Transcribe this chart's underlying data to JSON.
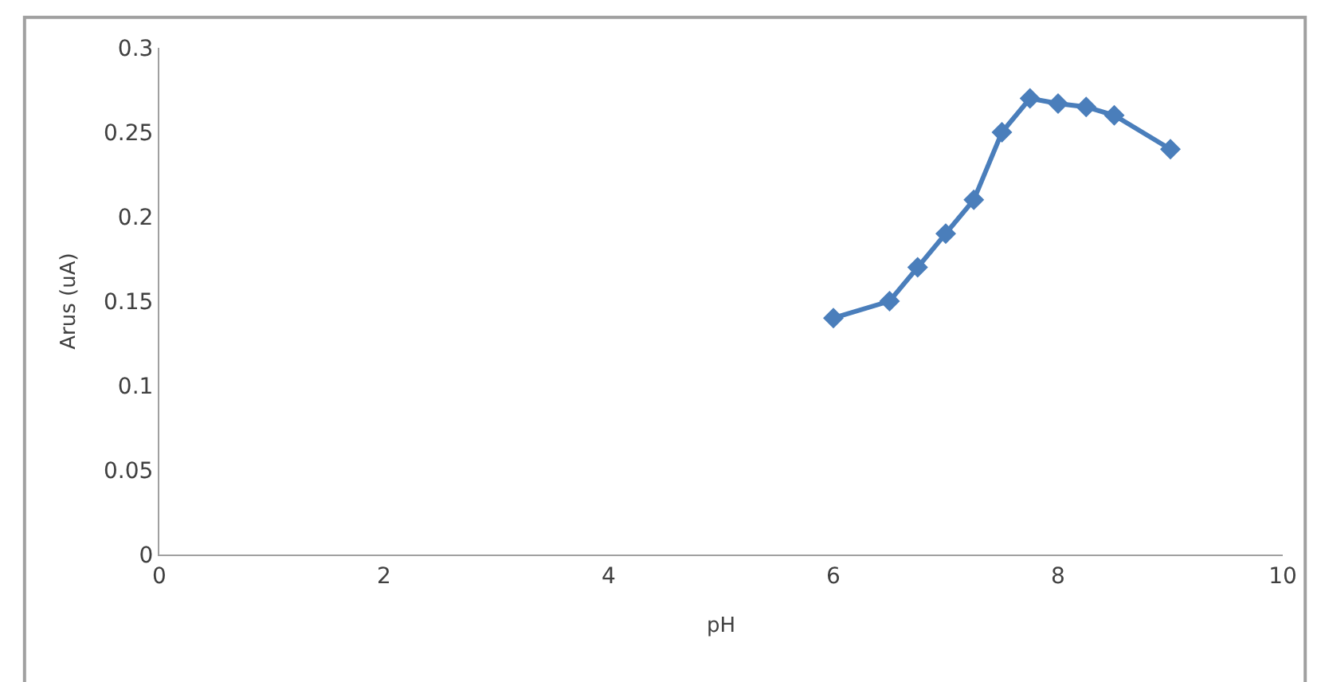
{
  "chart_data": {
    "type": "line",
    "xlabel": "pH",
    "ylabel": "Arus (uA)",
    "x": [
      6,
      6.5,
      6.75,
      7,
      7.25,
      7.5,
      7.75,
      8,
      8.25,
      8.5,
      9
    ],
    "series": [
      {
        "color": "#4a7ebb",
        "values": [
          0.14,
          0.15,
          0.17,
          0.19,
          0.21,
          0.25,
          0.27,
          0.267,
          0.265,
          0.26,
          0.24
        ]
      }
    ],
    "xlim": [
      0,
      10
    ],
    "xticks": [
      0,
      2,
      4,
      6,
      8,
      10
    ],
    "ylim": [
      0,
      0.3
    ],
    "yticks": [
      0,
      0.05,
      0.1,
      0.15,
      0.2,
      0.25,
      0.3
    ],
    "marker": "diamond",
    "line_style": "solid"
  }
}
